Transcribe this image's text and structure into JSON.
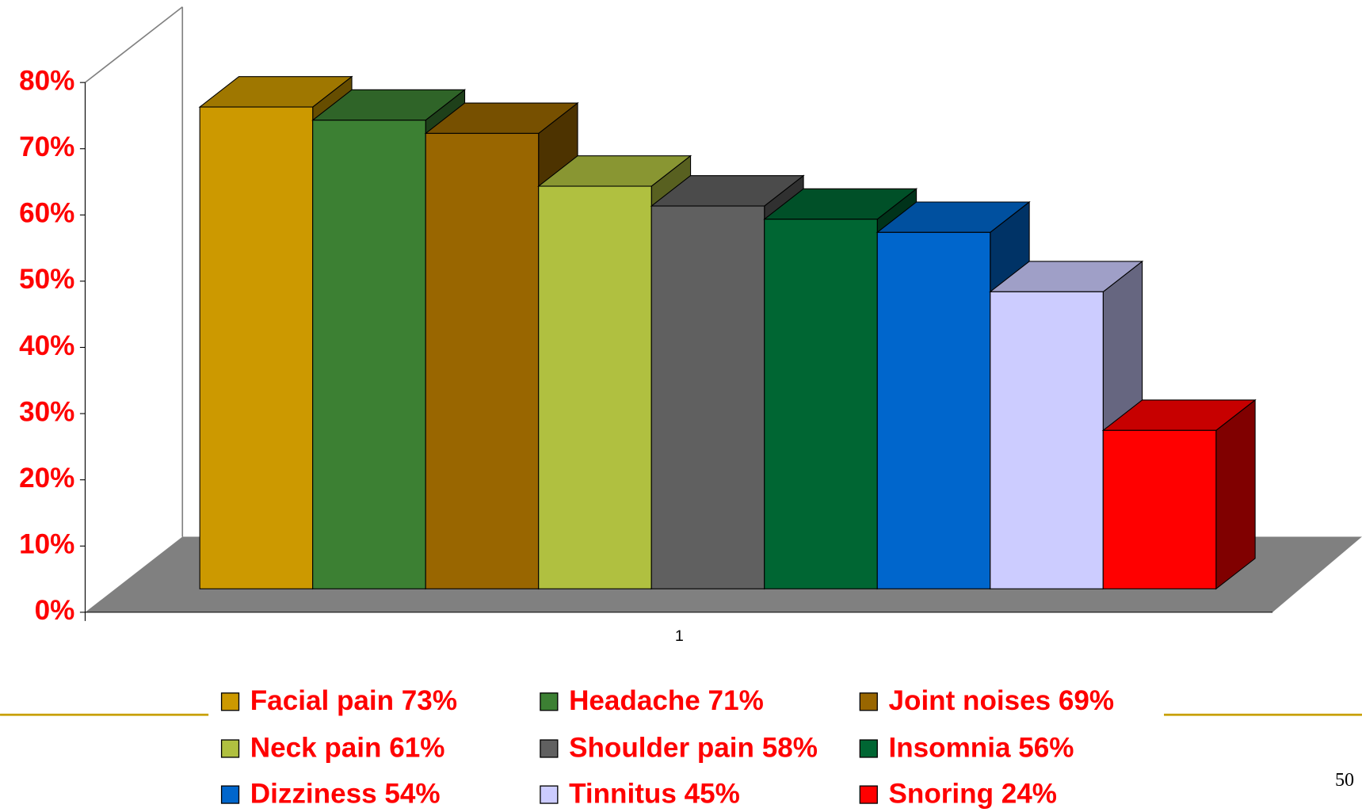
{
  "chart_data": {
    "type": "bar3d",
    "categories": [
      "1"
    ],
    "series": [
      {
        "name": "Facial pain 73%",
        "color": "#CC9900",
        "values": [
          73
        ]
      },
      {
        "name": "Headache 71%",
        "color": "#3C8033",
        "values": [
          71
        ]
      },
      {
        "name": "Joint noises 69%",
        "color": "#996600",
        "values": [
          69
        ]
      },
      {
        "name": "Neck pain 61%",
        "color": "#B0C040",
        "values": [
          61
        ]
      },
      {
        "name": "Shoulder pain 58%",
        "color": "#606060",
        "values": [
          58
        ]
      },
      {
        "name": "Insomnia 56%",
        "color": "#006633",
        "values": [
          56
        ]
      },
      {
        "name": "Dizziness 54%",
        "color": "#0066CC",
        "values": [
          54
        ]
      },
      {
        "name": "Tinnitus 45%",
        "color": "#CCCCFF",
        "values": [
          45
        ]
      },
      {
        "name": "Snoring 24%",
        "color": "#FF0000",
        "values": [
          24
        ]
      }
    ],
    "ylim": [
      0,
      80
    ],
    "yticks": [
      {
        "value": 0,
        "label": "0%"
      },
      {
        "value": 10,
        "label": "10%"
      },
      {
        "value": 20,
        "label": "20%"
      },
      {
        "value": 30,
        "label": "30%"
      },
      {
        "value": 40,
        "label": "40%"
      },
      {
        "value": 50,
        "label": "50%"
      },
      {
        "value": 60,
        "label": "60%"
      },
      {
        "value": 70,
        "label": "70%"
      },
      {
        "value": 80,
        "label": "80%"
      }
    ],
    "legend": "bottom"
  },
  "slide_number": "50"
}
